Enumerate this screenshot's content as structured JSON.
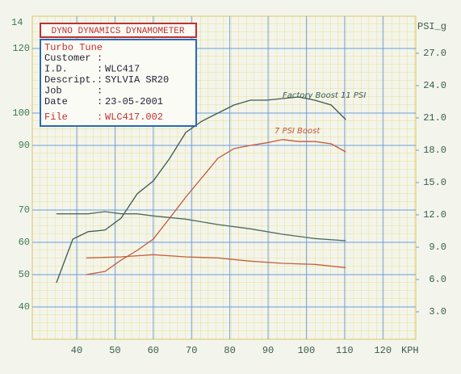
{
  "chart_data": {
    "type": "line",
    "title": "DYNO DYNAMICS DYNAMOMETER",
    "info": {
      "company": "Turbo Tune",
      "rows": [
        {
          "label": "Customer",
          "value": null
        },
        {
          "label": "I.D.",
          "value": "WLC417"
        },
        {
          "label": "Descript.",
          "value": "SYLVIA SR20"
        },
        {
          "label": "Job",
          "value": null
        },
        {
          "label": "Date",
          "value": "23-05-2001"
        }
      ],
      "file": {
        "label": "File",
        "value": "WLC417.002"
      }
    },
    "x_label": "KPH",
    "y2_label": "PSI_g",
    "corner_fragment": "14",
    "annotations": [
      "Factory Boost 11 PSI",
      "7 PSI Boost"
    ],
    "xlim": [
      28.4,
      128.6
    ],
    "xticks": [
      40,
      50,
      60,
      70,
      80,
      90,
      100,
      110,
      120
    ],
    "ylim": [
      30,
      130
    ],
    "yticks": [
      40,
      50,
      60,
      70,
      90,
      100,
      120
    ],
    "y2lim": [
      0.45,
      30.45
    ],
    "y2ticks": [
      {
        "value": 3,
        "label": "3.0"
      },
      {
        "value": 6,
        "label": "6.0"
      },
      {
        "value": 9,
        "label": "9.0"
      },
      {
        "value": 12,
        "label": "12.0"
      },
      {
        "value": 15,
        "label": "15.0"
      },
      {
        "value": 18,
        "label": "18.0"
      },
      {
        "value": 21,
        "label": "21.0"
      },
      {
        "value": 24,
        "label": "24.0"
      },
      {
        "value": 27,
        "label": "27.0"
      }
    ],
    "grid": true,
    "series": [
      {
        "color": "#3d5a55",
        "x": [
          34.7,
          39,
          43,
          47.4,
          51.6,
          55.8,
          60,
          64.3,
          68.5,
          72.7,
          76.9,
          81.1,
          85.4,
          89.6,
          93.8,
          98,
          102.2,
          106.5,
          110.3
        ],
        "values": [
          47.5,
          61,
          63.3,
          63.8,
          67.5,
          75,
          79,
          86,
          94,
          97.5,
          100,
          102.5,
          104,
          104,
          104.5,
          105,
          104,
          102.5,
          98
        ]
      },
      {
        "color": "#c4573c",
        "x": [
          42.5,
          47.4,
          51.6,
          55.8,
          60,
          64.3,
          68.5,
          72.7,
          76.9,
          81.1,
          85.4,
          89.6,
          93.8,
          98,
          102.2,
          106.5,
          110.3
        ],
        "values": [
          50,
          51,
          54.5,
          57.5,
          61,
          67.5,
          74,
          80,
          86,
          89,
          90,
          90.8,
          91.8,
          91.2,
          91.2,
          90.5,
          88
        ]
      },
      {
        "color": "#4a6a62",
        "axis": "y2",
        "x": [
          34.7,
          43,
          47.4,
          51.6,
          55.8,
          60,
          68.5,
          76.9,
          85.4,
          93.8,
          102.2,
          110.3
        ],
        "values": [
          12.1,
          12.1,
          12.3,
          12.1,
          12.1,
          11.9,
          11.6,
          11.1,
          10.7,
          10.2,
          9.8,
          9.6
        ]
      },
      {
        "color": "#c4603f",
        "axis": "y2",
        "x": [
          42.5,
          51.6,
          60,
          68.5,
          76.9,
          85.4,
          93.8,
          102.2,
          110.3
        ],
        "values": [
          8.0,
          8.1,
          8.3,
          8.1,
          8.0,
          7.7,
          7.5,
          7.4,
          7.1
        ]
      }
    ]
  }
}
